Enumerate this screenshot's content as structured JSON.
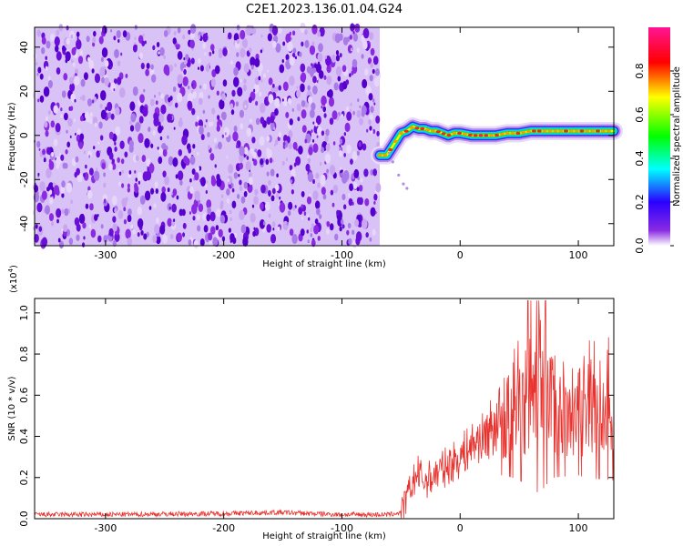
{
  "chart_data": [
    {
      "type": "heatmap",
      "title": "C2E1.2023.136.01.04.G24",
      "xlabel": "Height of straight line (km)",
      "ylabel": "Frequency (Hz)",
      "xlim": [
        -360,
        130
      ],
      "ylim": [
        -50,
        49
      ],
      "xticks": [
        -300,
        -200,
        -100,
        0,
        100
      ],
      "yticks": [
        -40,
        -20,
        0,
        20,
        40
      ],
      "noise_region_x": [
        -360,
        -68
      ],
      "signal_track": {
        "x": [
          -68,
          -62,
          -56,
          -50,
          -45,
          -40,
          -35,
          -30,
          -25,
          -20,
          -15,
          -10,
          -5,
          0,
          10,
          20,
          30,
          40,
          50,
          60,
          70,
          80,
          90,
          100,
          110,
          120,
          130
        ],
        "y": [
          -9,
          -9,
          -4,
          1,
          2,
          4,
          3,
          3,
          2,
          2,
          1,
          0,
          1,
          1,
          0,
          0,
          0,
          1,
          1,
          2,
          2,
          2,
          2,
          2,
          2,
          2,
          2
        ]
      },
      "colorbar": {
        "label": "Normalized spectral amplitude",
        "range": [
          0.0,
          1.0
        ],
        "ticks": [
          "0.0",
          "0.2",
          "0.4",
          "0.6",
          "0.8"
        ]
      }
    },
    {
      "type": "line",
      "xlabel": "Height of straight line (km)",
      "ylabel": "SNR (10 * v/v)",
      "multiplier": "(x10",
      "multiplier_exp": "4",
      "multiplier_close": ")",
      "xlim": [
        -360,
        130
      ],
      "ylim": [
        0,
        1.07
      ],
      "xticks": [
        -300,
        -200,
        -100,
        0,
        100
      ],
      "yticks": [
        "0.0",
        "0.2",
        "0.4",
        "0.6",
        "0.8",
        "1.0"
      ],
      "series": [
        {
          "name": "SNR",
          "color": "#e8322e",
          "x": [
            -360,
            -300,
            -200,
            -160,
            -150,
            -100,
            -60,
            -50,
            -45,
            -40,
            -35,
            -30,
            -20,
            -10,
            0,
            10,
            20,
            30,
            40,
            50,
            55,
            60,
            65,
            70,
            75,
            80,
            90,
            100,
            110,
            120,
            130
          ],
          "y": [
            0.02,
            0.02,
            0.025,
            0.03,
            0.03,
            0.02,
            0.02,
            0.03,
            0.1,
            0.18,
            0.22,
            0.18,
            0.22,
            0.26,
            0.3,
            0.36,
            0.4,
            0.46,
            0.5,
            0.56,
            0.66,
            0.7,
            0.8,
            0.74,
            0.6,
            0.52,
            0.5,
            0.48,
            0.56,
            0.54,
            0.58
          ]
        }
      ]
    }
  ]
}
